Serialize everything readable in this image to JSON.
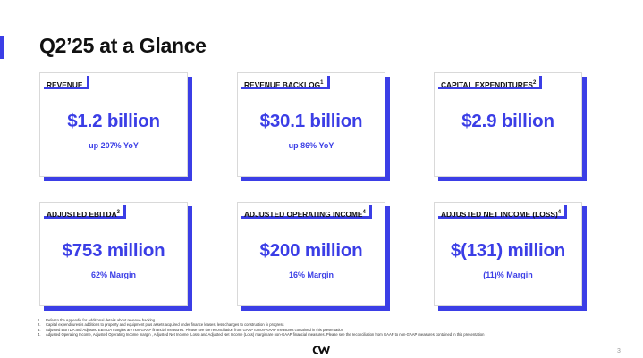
{
  "title": "Q2’25 at a Glance",
  "cards": [
    {
      "label": "REVENUE",
      "sup": "",
      "value": "$1.2 billion",
      "sub": "up 207% YoY"
    },
    {
      "label": "REVENUE BACKLOG",
      "sup": "1",
      "value": "$30.1 billion",
      "sub": "up 86% YoY"
    },
    {
      "label": "CAPITAL EXPENDITURES",
      "sup": "2",
      "value": "$2.9 billion",
      "sub": ""
    },
    {
      "label": "ADJUSTED EBITDA",
      "sup": "3",
      "value": "$753 million",
      "sub": "62% Margin"
    },
    {
      "label": "ADJUSTED OPERATING INCOME",
      "sup": "4",
      "value": "$200 million",
      "sub": "16% Margin"
    },
    {
      "label": "ADJUSTED NET INCOME (LOSS)",
      "sup": "4",
      "value": "$(131) million",
      "sub": "(11)% Margin"
    }
  ],
  "footnotes": [
    {
      "num": "1.",
      "text": "Refer to the Appendix for additional details about revenue backlog"
    },
    {
      "num": "2.",
      "text": "Capital expenditures is additions to property and equipment plus assets acquired under finance leases, less changes to construction in progress"
    },
    {
      "num": "3.",
      "text": "Adjusted EBITDA and Adjusted EBITDA margins are non-GAAP financial measures. Please see the reconciliation from GAAP to non-GAAP measures contained in this presentation"
    },
    {
      "num": "4.",
      "text": "Adjusted Operating Income, Adjusted Operating Income margin , Adjusted Net Income (Loss) and Adjusted Net Income (Loss) margin are non-GAAP financial measures. Please see the reconciliation from GAAP to non-GAAP measures contained in this presentation"
    }
  ],
  "page_number": "3",
  "logo_icon": "coreweave-logo-icon",
  "colors": {
    "accent": "#3b3ee6"
  }
}
